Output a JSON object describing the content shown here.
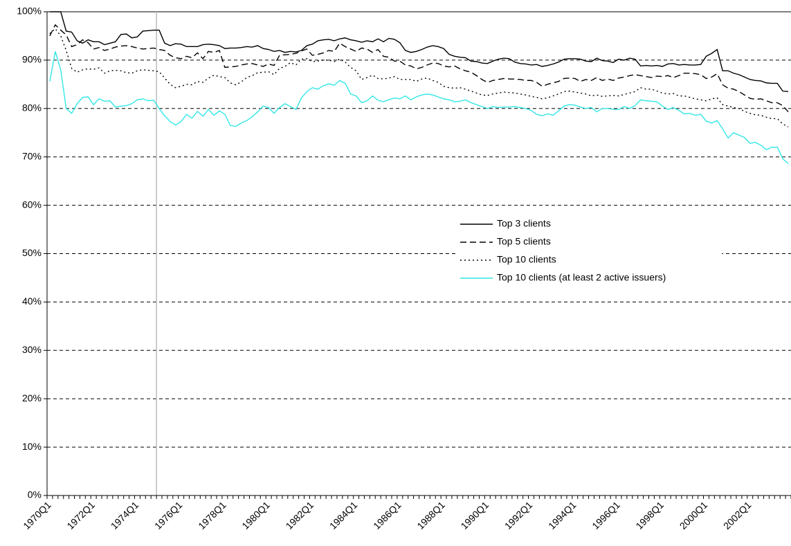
{
  "chart_data": {
    "type": "line",
    "categories": [
      "1970Q1",
      null,
      null,
      null,
      null,
      null,
      null,
      null,
      "1972Q1",
      null,
      null,
      null,
      null,
      null,
      null,
      null,
      "1974Q1",
      null,
      null,
      null,
      null,
      null,
      null,
      null,
      "1976Q1",
      null,
      null,
      null,
      null,
      null,
      null,
      null,
      "1978Q1",
      null,
      null,
      null,
      null,
      null,
      null,
      null,
      "1980Q1",
      null,
      null,
      null,
      null,
      null,
      null,
      null,
      "1982Q1",
      null,
      null,
      null,
      null,
      null,
      null,
      null,
      "1984Q1",
      null,
      null,
      null,
      null,
      null,
      null,
      null,
      "1986Q1",
      null,
      null,
      null,
      null,
      null,
      null,
      null,
      "1988Q1",
      null,
      null,
      null,
      null,
      null,
      null,
      null,
      "1990Q1",
      null,
      null,
      null,
      null,
      null,
      null,
      null,
      "1992Q1",
      null,
      null,
      null,
      null,
      null,
      null,
      null,
      "1994Q1",
      null,
      null,
      null,
      null,
      null,
      null,
      null,
      "1996Q1",
      null,
      null,
      null,
      null,
      null,
      null,
      null,
      "1998Q1",
      null,
      null,
      null,
      null,
      null,
      null,
      null,
      "2000Q1",
      null,
      null,
      null,
      null,
      null,
      null,
      null,
      "2002Q1",
      null,
      null,
      null,
      null,
      null,
      null,
      null
    ],
    "series": [
      {
        "name": "Top 3 clients",
        "color": "#000000",
        "dash": "solid",
        "values": [
          100,
          100,
          100,
          96,
          95.8,
          94,
          93.5,
          94.2,
          93.8,
          93.8,
          93.2,
          93.5,
          93.8,
          95.3,
          95.4,
          94.6,
          94.8,
          96.0,
          96.1,
          96.2,
          96.2,
          93.5,
          93.0,
          93.4,
          93.3,
          92.8,
          92.8,
          92.8,
          93.2,
          93.3,
          93.2,
          93.0,
          92.4,
          92.5,
          92.5,
          92.6,
          92.8,
          92.7,
          93.0,
          92.4,
          92.2,
          91.8,
          92.0,
          91.6,
          91.8,
          91.7,
          92.0,
          93.0,
          93.3,
          94.0,
          94.2,
          94.3,
          94.0,
          94.4,
          94.6,
          94.2,
          94.0,
          93.7,
          94.0,
          93.8,
          94.4,
          93.8,
          94.5,
          94.3,
          93.6,
          92.0,
          91.6,
          91.8,
          92.2,
          92.7,
          93.0,
          92.8,
          92.4,
          91.2,
          90.8,
          90.6,
          90.5,
          89.8,
          89.7,
          89.4,
          89.3,
          89.8,
          90.2,
          90.4,
          90.3,
          89.6,
          89.3,
          89.2,
          89.0,
          89.1,
          88.7,
          88.9,
          89.2,
          89.6,
          90.2,
          90.3,
          90.3,
          90.2,
          89.8,
          89.7,
          90.4,
          89.9,
          89.8,
          89.5,
          90.2,
          90.0,
          90.4,
          90.2,
          88.8,
          88.9,
          88.8,
          88.9,
          88.7,
          89.2,
          89.3,
          89.0,
          89.1,
          89.0,
          89.0,
          89.1,
          90.8,
          91.4,
          92.2,
          87.8,
          87.8,
          87.3,
          87.0,
          86.5,
          86.0,
          85.8,
          85.7,
          85.3,
          85.2,
          85.2,
          83.6,
          83.5
        ]
      },
      {
        "name": "Top 5 clients",
        "color": "#000000",
        "dash": "dashed",
        "values": [
          95,
          97.3,
          96.2,
          95.2,
          92.8,
          93.2,
          94.2,
          93.6,
          92.3,
          92.6,
          92.0,
          92.3,
          92.7,
          92.9,
          93.0,
          92.8,
          92.5,
          92.3,
          92.4,
          92.5,
          92.2,
          92.0,
          91.0,
          90.5,
          90.3,
          90.8,
          90.5,
          91.5,
          90.3,
          91.8,
          91.6,
          92.0,
          88.5,
          88.6,
          88.7,
          89.0,
          89.2,
          89.3,
          89.0,
          88.7,
          89.2,
          88.9,
          91.0,
          91.1,
          91.2,
          91.4,
          91.9,
          92.3,
          91.0,
          91.2,
          91.5,
          92.0,
          91.8,
          93.5,
          92.8,
          92.3,
          91.8,
          92.5,
          92.3,
          91.6,
          92.2,
          90.8,
          90.6,
          89.8,
          89.8,
          89.0,
          88.8,
          88.2,
          88.5,
          89.0,
          89.4,
          89.3,
          88.8,
          88.6,
          88.8,
          88.2,
          87.8,
          87.5,
          86.8,
          86.0,
          85.4,
          85.8,
          86.0,
          86.2,
          86.1,
          86.1,
          86.0,
          85.8,
          85.8,
          85.4,
          84.6,
          85.0,
          85.3,
          85.6,
          86.2,
          86.3,
          86.2,
          85.6,
          86.0,
          85.8,
          86.4,
          85.8,
          86.1,
          85.8,
          86.3,
          86.5,
          86.8,
          87.0,
          86.8,
          86.6,
          86.4,
          86.7,
          86.6,
          86.8,
          86.4,
          86.8,
          87.3,
          87.3,
          87.2,
          87.0,
          86.2,
          86.5,
          87.2,
          84.9,
          84.2,
          84.0,
          83.5,
          82.8,
          82.1,
          81.9,
          82.0,
          81.6,
          81.2,
          81.2,
          80.6,
          79.3
        ]
      },
      {
        "name": "Top 10 clients",
        "color": "#000000",
        "dash": "dotted",
        "values": [
          95.5,
          96.5,
          95.0,
          92.0,
          88.3,
          87.5,
          88.0,
          88.2,
          88.1,
          88.4,
          87.3,
          87.8,
          87.9,
          87.8,
          87.4,
          87.3,
          87.8,
          88.0,
          87.9,
          87.8,
          87.6,
          86.3,
          85.0,
          84.3,
          84.6,
          85.0,
          84.9,
          85.6,
          85.4,
          86.3,
          86.9,
          86.6,
          86.4,
          85.3,
          84.9,
          85.5,
          86.4,
          86.8,
          87.4,
          87.5,
          87.6,
          87.0,
          88.3,
          88.7,
          89.5,
          89.0,
          90.2,
          90.3,
          89.7,
          89.8,
          90.0,
          90.0,
          89.7,
          90.2,
          89.6,
          88.5,
          87.8,
          86.0,
          86.4,
          86.9,
          86.2,
          86.1,
          86.3,
          86.6,
          86.0,
          86.0,
          86.0,
          85.6,
          86.1,
          86.3,
          85.8,
          85.4,
          84.6,
          84.3,
          84.2,
          84.3,
          84.0,
          83.6,
          83.2,
          82.8,
          82.7,
          83.0,
          83.2,
          83.4,
          83.3,
          83.2,
          83.0,
          82.8,
          82.5,
          82.3,
          82.0,
          82.2,
          82.6,
          83.0,
          83.5,
          83.6,
          83.4,
          83.2,
          83.0,
          82.6,
          82.8,
          82.5,
          82.6,
          82.7,
          82.6,
          82.9,
          83.2,
          83.5,
          84.3,
          84.0,
          84.0,
          83.6,
          83.2,
          83.0,
          83.1,
          82.6,
          82.6,
          82.3,
          82.0,
          81.8,
          81.6,
          82.0,
          82.2,
          80.8,
          80.5,
          80.2,
          80.0,
          79.4,
          79.0,
          78.7,
          78.6,
          78.2,
          77.9,
          77.9,
          76.8,
          76.2
        ]
      },
      {
        "name": "Top 10 clients (at least 2 active issuers)",
        "color": "#33e6e6",
        "dash": "solid",
        "values": [
          85.6,
          91.8,
          88.0,
          80.0,
          79.0,
          81.0,
          82.3,
          82.4,
          80.8,
          82.0,
          81.5,
          81.6,
          80.3,
          80.5,
          80.6,
          81.0,
          81.8,
          82.0,
          81.6,
          81.7,
          80.0,
          78.5,
          77.3,
          76.6,
          77.3,
          78.8,
          78.0,
          79.4,
          78.4,
          79.8,
          78.6,
          79.5,
          78.8,
          76.5,
          76.3,
          77.0,
          77.5,
          78.3,
          79.3,
          80.5,
          80.2,
          79.0,
          80.2,
          81.0,
          80.4,
          79.8,
          82.2,
          83.5,
          84.3,
          84.0,
          84.7,
          85.1,
          84.8,
          85.8,
          85.2,
          83.0,
          82.6,
          81.2,
          81.6,
          82.6,
          81.7,
          81.4,
          81.8,
          82.2,
          82.0,
          82.6,
          81.8,
          82.4,
          82.8,
          83.0,
          82.8,
          82.4,
          82.0,
          81.8,
          81.4,
          81.5,
          81.8,
          81.2,
          80.8,
          80.4,
          80.0,
          80.4,
          80.2,
          80.3,
          80.3,
          80.4,
          80.2,
          80.0,
          79.6,
          78.8,
          78.5,
          78.9,
          78.6,
          79.5,
          80.5,
          80.8,
          80.7,
          80.3,
          80.0,
          80.2,
          79.3,
          80.0,
          80.0,
          79.8,
          79.8,
          80.4,
          80.0,
          80.6,
          81.8,
          81.6,
          81.5,
          81.4,
          80.5,
          79.8,
          80.2,
          79.6,
          78.9,
          79.0,
          78.6,
          78.8,
          77.4,
          77.0,
          77.5,
          75.8,
          73.9,
          75.0,
          74.5,
          74.0,
          72.8,
          73.0,
          72.4,
          71.5,
          72.0,
          72.0,
          69.6,
          68.6
        ]
      }
    ],
    "ylim": [
      0,
      100
    ],
    "yticks": [
      {
        "value": 0,
        "label": "0%"
      },
      {
        "value": 10,
        "label": "10%"
      },
      {
        "value": 20,
        "label": "20%"
      },
      {
        "value": 30,
        "label": "30%"
      },
      {
        "value": 40,
        "label": "40%"
      },
      {
        "value": 50,
        "label": "50%"
      },
      {
        "value": 60,
        "label": "60%"
      },
      {
        "value": 70,
        "label": "70%"
      },
      {
        "value": 80,
        "label": "80%"
      },
      {
        "value": 90,
        "label": "90%"
      },
      {
        "value": 100,
        "label": "100%"
      }
    ],
    "grid": true
  }
}
